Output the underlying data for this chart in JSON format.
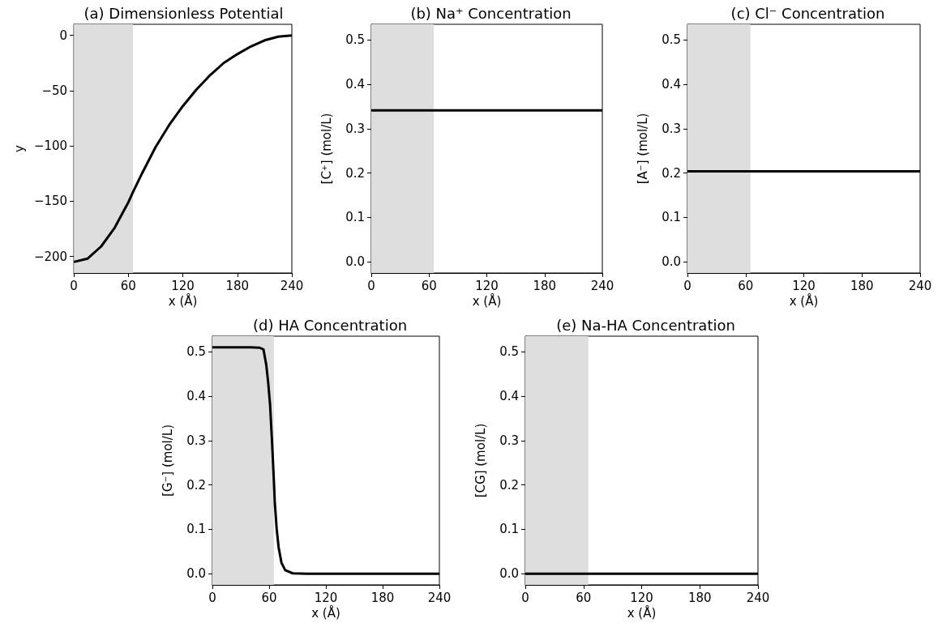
{
  "chart_data": [
    {
      "type": "line",
      "title": "(a) Dimensionless Potential",
      "xlabel": "x (Å)",
      "ylabel": "y",
      "marker": "none",
      "x": [
        0,
        15,
        30,
        45,
        60,
        65,
        75,
        90,
        105,
        120,
        135,
        150,
        165,
        180,
        195,
        210,
        225,
        240
      ],
      "series": [
        {
          "color": "#000000",
          "values": [
            -205,
            -202,
            -191,
            -174,
            -151,
            -142,
            -125,
            -101,
            -81,
            -64,
            -49,
            -36,
            -25,
            -17,
            -10,
            -4.5,
            -1.2,
            0
          ]
        }
      ],
      "xlim": [
        0,
        240
      ],
      "xticks": [
        0,
        60,
        120,
        180,
        240
      ],
      "ylim": [
        -215,
        10
      ],
      "yticks": [
        {
          "value": -200,
          "label": "−200"
        },
        {
          "value": -150,
          "label": "−150"
        },
        {
          "value": -100,
          "label": "−100"
        },
        {
          "value": -50,
          "label": "−50"
        },
        0
      ],
      "bands": [
        {
          "axis": "x",
          "from": 0,
          "to": 65,
          "color": "#dedede"
        }
      ]
    },
    {
      "type": "line",
      "title": "(b) Na⁺ Concentration",
      "xlabel": "x (Å)",
      "ylabel": "[C⁺] (mol/L)",
      "marker": "none",
      "x": [
        0,
        240
      ],
      "series": [
        {
          "color": "#000000",
          "values": [
            0.341,
            0.341
          ]
        }
      ],
      "xlim": [
        0,
        240
      ],
      "xticks": [
        0,
        60,
        120,
        180,
        240
      ],
      "ylim": [
        -0.025,
        0.535
      ],
      "yticks": [
        {
          "value": 0,
          "label": "0.0"
        },
        0.1,
        0.2,
        0.3,
        0.4,
        0.5
      ],
      "bands": [
        {
          "axis": "x",
          "from": 0,
          "to": 65,
          "color": "#dedede"
        }
      ]
    },
    {
      "type": "line",
      "title": "(c) Cl⁻ Concentration",
      "xlabel": "x (Å)",
      "ylabel": "[A⁻] (mol/L)",
      "marker": "none",
      "x": [
        0,
        240
      ],
      "series": [
        {
          "color": "#000000",
          "values": [
            0.204,
            0.204
          ]
        }
      ],
      "xlim": [
        0,
        240
      ],
      "xticks": [
        0,
        60,
        120,
        180,
        240
      ],
      "ylim": [
        -0.025,
        0.535
      ],
      "yticks": [
        {
          "value": 0,
          "label": "0.0"
        },
        0.1,
        0.2,
        0.3,
        0.4,
        0.5
      ],
      "bands": [
        {
          "axis": "x",
          "from": 0,
          "to": 65,
          "color": "#dedede"
        }
      ]
    },
    {
      "type": "line",
      "title": "(d) HA Concentration",
      "xlabel": "x (Å)",
      "ylabel": "[G⁻] (mol/L)",
      "marker": "none",
      "x": [
        0,
        40,
        50,
        54,
        57,
        59,
        61,
        63,
        64,
        65,
        66,
        68,
        70,
        73,
        77,
        85,
        100,
        240
      ],
      "series": [
        {
          "color": "#000000",
          "values": [
            0.51,
            0.51,
            0.509,
            0.505,
            0.47,
            0.43,
            0.38,
            0.3,
            0.255,
            0.21,
            0.16,
            0.1,
            0.06,
            0.025,
            0.008,
            0.001,
            0,
            0
          ]
        }
      ],
      "xlim": [
        0,
        240
      ],
      "xticks": [
        0,
        60,
        120,
        180,
        240
      ],
      "ylim": [
        -0.025,
        0.535
      ],
      "yticks": [
        {
          "value": 0,
          "label": "0.0"
        },
        0.1,
        0.2,
        0.3,
        0.4,
        0.5
      ],
      "bands": [
        {
          "axis": "x",
          "from": 0,
          "to": 65,
          "color": "#dedede"
        }
      ]
    },
    {
      "type": "line",
      "title": "(e) Na-HA Concentration",
      "xlabel": "x (Å)",
      "ylabel": "[CG] (mol/L)",
      "marker": "none",
      "x": [
        0,
        240
      ],
      "series": [
        {
          "color": "#000000",
          "values": [
            0,
            0
          ]
        }
      ],
      "xlim": [
        0,
        240
      ],
      "xticks": [
        0,
        60,
        120,
        180,
        240
      ],
      "ylim": [
        -0.025,
        0.535
      ],
      "yticks": [
        {
          "value": 0,
          "label": "0.0"
        },
        0.1,
        0.2,
        0.3,
        0.4,
        0.5
      ],
      "bands": [
        {
          "axis": "x",
          "from": 0,
          "to": 65,
          "color": "#dedede"
        }
      ]
    }
  ]
}
